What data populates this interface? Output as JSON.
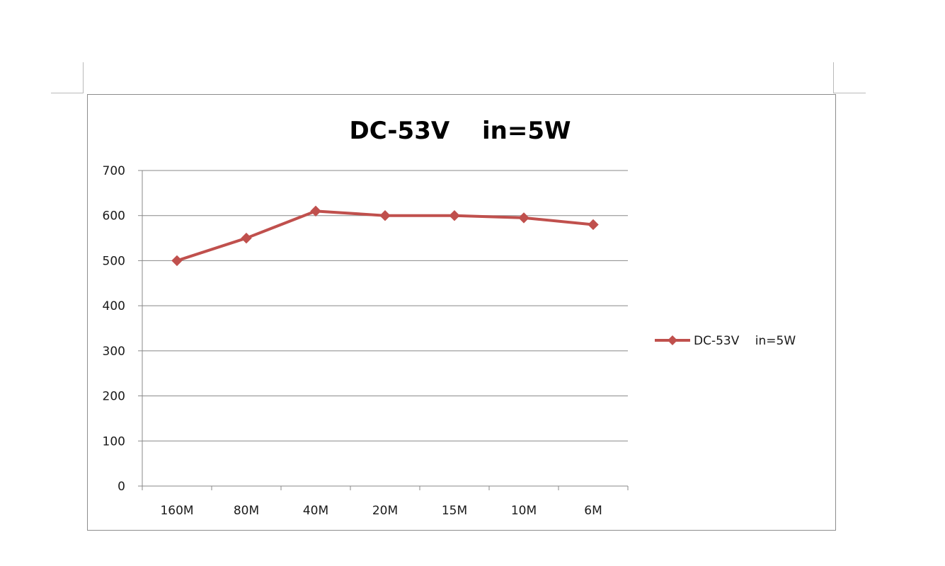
{
  "chart_data": {
    "type": "line",
    "title": "DC-53V　 in=5W",
    "xlabel": "",
    "ylabel": "",
    "categories": [
      "160M",
      "80M",
      "40M",
      "20M",
      "15M",
      "10M",
      "6M"
    ],
    "series": [
      {
        "name": "DC-53V　 in=5W",
        "values": [
          500,
          550,
          610,
          600,
          600,
          595,
          580
        ],
        "color": "#c0504d",
        "marker": "diamond"
      }
    ],
    "ylim": [
      0,
      700
    ],
    "yticks": [
      "0",
      "100",
      "200",
      "300",
      "400",
      "500",
      "600",
      "700"
    ],
    "grid": true,
    "legend": "right"
  }
}
